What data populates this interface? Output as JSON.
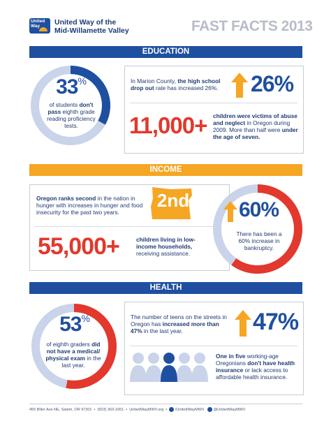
{
  "header": {
    "logo_line1": "United",
    "logo_line2": "Way",
    "org_line1": "United Way of the",
    "org_line2": "Mid-Willamette Valley",
    "title": "FAST FACTS 2013"
  },
  "education": {
    "heading": "EDUCATION",
    "ring": {
      "percent": 33,
      "number": "33",
      "unit": "%",
      "text_plain1": "of students ",
      "text_bold": "don't pass",
      "text_plain2": "eighth grade reading proficiency tests."
    },
    "dropout": {
      "text_plain1": "In Marion County, ",
      "text_bold": "the high school",
      "text_plain2": "drop out",
      "text_plain3": " rate has increased 26%.",
      "figure": "26%"
    },
    "abuse": {
      "figure": "11,000+",
      "text_bold1": "children were victims of abuse and neglect",
      "text_plain": " in Oregon during 2009. More than half were ",
      "text_bold2": "under the age of seven."
    }
  },
  "income": {
    "heading": "INCOME",
    "hunger": {
      "text_bold": "Oregon ranks second",
      "text_plain": " in the nation in hunger with increases in hunger and food insecurity for the past two years.",
      "rank": "2nd"
    },
    "assistance": {
      "figure": "55,000+",
      "text_bold": "children living in low-income households,",
      "text_plain": " receiving assistance."
    },
    "bankruptcy": {
      "percent": 60,
      "figure": "60%",
      "text": "There has been a 60% increase in bankruptcy."
    }
  },
  "health": {
    "heading": "HEALTH",
    "ring": {
      "percent": 53,
      "number": "53",
      "unit": "%",
      "text_plain1": "of eighth graders ",
      "text_bold": "did not have a medical/ physical exam",
      "text_plain2": " in the last year."
    },
    "teens": {
      "text_plain1": "The number of teens on the streets in Oregon has ",
      "text_bold": "increased more than 47%",
      "text_plain2": " in the last year.",
      "figure": "47%"
    },
    "insurance": {
      "text_bold": "One in five",
      "text_plain1": " working-age Oregonians ",
      "text_bold2": "don't have health insurance",
      "text_plain2": " or lack access to affordable health insurance."
    }
  },
  "footer": {
    "address": "455 Bliler Ave NE, Salem, OR 97301",
    "phone": "(503) 363-1651",
    "website": "UnitedWayMWV.org",
    "facebook": "/UnitedWayMWV",
    "twitter": "@UnitedWayMWV"
  },
  "colors": {
    "blue": "#1f4fa0",
    "yellow": "#f5a623",
    "red": "#e2382d",
    "ring_light": "#c9d3ea"
  }
}
